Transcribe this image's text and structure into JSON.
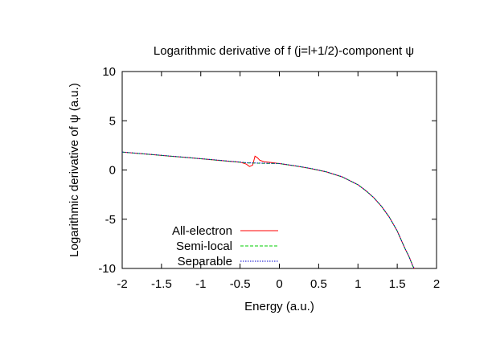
{
  "chart_data": {
    "type": "line",
    "title": "Logarithmic derivative of f (j=l+1/2)-component ψ",
    "xlabel": "Energy (a.u.)",
    "ylabel": "Logarithmic derivative of ψ (a.u.)",
    "xlim": [
      -2,
      2
    ],
    "ylim": [
      -10,
      10
    ],
    "xticks": [
      "-2",
      "-1.5",
      "-1",
      "-0.5",
      "0",
      "0.5",
      "1",
      "1.5",
      "2"
    ],
    "yticks": [
      "10",
      "5",
      "0",
      "-5",
      "-10"
    ],
    "legend_position": "bottom-left",
    "grid": false,
    "series": [
      {
        "name": "All-electron",
        "color": "#ff0000",
        "dash": "solid",
        "x": [
          -2.0,
          -1.8,
          -1.6,
          -1.4,
          -1.2,
          -1.0,
          -0.8,
          -0.6,
          -0.5,
          -0.42,
          -0.38,
          -0.34,
          -0.31,
          -0.28,
          -0.25,
          -0.2,
          -0.1,
          0.0,
          0.2,
          0.4,
          0.6,
          0.8,
          1.0,
          1.1,
          1.2,
          1.3,
          1.4,
          1.5,
          1.55,
          1.6,
          1.65,
          1.68,
          1.7,
          1.72
        ],
        "y": [
          1.82,
          1.68,
          1.55,
          1.41,
          1.28,
          1.14,
          1.0,
          0.86,
          0.8,
          0.6,
          0.35,
          0.5,
          1.4,
          1.25,
          1.0,
          0.85,
          0.75,
          0.65,
          0.42,
          0.15,
          -0.2,
          -0.7,
          -1.5,
          -2.1,
          -2.8,
          -3.7,
          -4.8,
          -6.2,
          -7.1,
          -8.0,
          -8.8,
          -9.4,
          -9.8,
          -10.0
        ]
      },
      {
        "name": "Semi-local",
        "color": "#00cc00",
        "dash": "dashed",
        "x": [
          -2.0,
          -1.8,
          -1.6,
          -1.4,
          -1.2,
          -1.0,
          -0.8,
          -0.6,
          -0.4,
          -0.2,
          0.0,
          0.2,
          0.4,
          0.6,
          0.8,
          1.0,
          1.1,
          1.2,
          1.3,
          1.4,
          1.5,
          1.55,
          1.6,
          1.65,
          1.68,
          1.7,
          1.72
        ],
        "y": [
          1.82,
          1.68,
          1.55,
          1.41,
          1.28,
          1.14,
          1.0,
          0.86,
          0.72,
          0.68,
          0.65,
          0.42,
          0.15,
          -0.2,
          -0.7,
          -1.5,
          -2.1,
          -2.8,
          -3.7,
          -4.8,
          -6.2,
          -7.1,
          -8.0,
          -8.8,
          -9.4,
          -9.8,
          -10.0
        ]
      },
      {
        "name": "Separable",
        "color": "#0000cc",
        "dash": "dotted",
        "x": [
          -2.0,
          -1.8,
          -1.6,
          -1.4,
          -1.2,
          -1.0,
          -0.8,
          -0.6,
          -0.4,
          -0.2,
          0.0,
          0.2,
          0.4,
          0.6,
          0.8,
          1.0,
          1.1,
          1.2,
          1.3,
          1.4,
          1.5,
          1.55,
          1.6,
          1.65,
          1.68,
          1.7,
          1.72
        ],
        "y": [
          1.83,
          1.69,
          1.56,
          1.42,
          1.29,
          1.15,
          1.01,
          0.87,
          0.73,
          0.69,
          0.66,
          0.43,
          0.16,
          -0.19,
          -0.69,
          -1.49,
          -2.09,
          -2.79,
          -3.69,
          -4.79,
          -6.19,
          -7.09,
          -7.99,
          -8.79,
          -9.39,
          -9.79,
          -10.0
        ]
      }
    ]
  }
}
